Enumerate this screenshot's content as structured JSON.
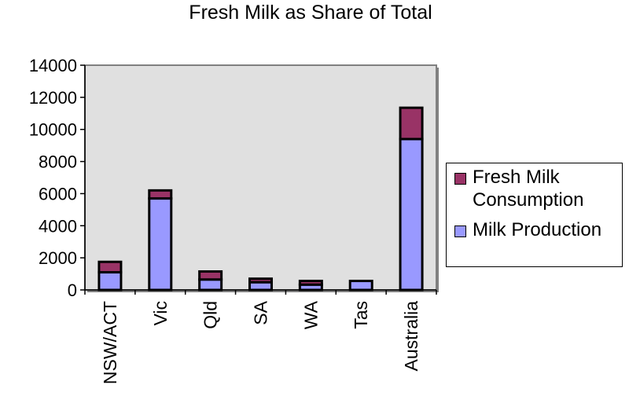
{
  "chart_data": {
    "type": "bar",
    "stacked": true,
    "title": "Fresh Milk as Share of Total",
    "categories": [
      "NSW/ACT",
      "Vic",
      "Qld",
      "SA",
      "WA",
      "Tas",
      "Australia"
    ],
    "series": [
      {
        "name": "Milk Production",
        "color": "#9999ff",
        "values": [
          1100,
          5700,
          650,
          480,
          330,
          560,
          9400
        ]
      },
      {
        "name": "Fresh Milk Consumption",
        "color": "#993366",
        "values": [
          650,
          500,
          500,
          220,
          230,
          0,
          1950
        ]
      }
    ],
    "ylim": [
      0,
      14000
    ],
    "yticks": [
      "0",
      "2000",
      "4000",
      "6000",
      "8000",
      "10000",
      "12000",
      "14000"
    ],
    "grid": false,
    "legend_position": "right",
    "plot_background": "#e0e0e0"
  }
}
